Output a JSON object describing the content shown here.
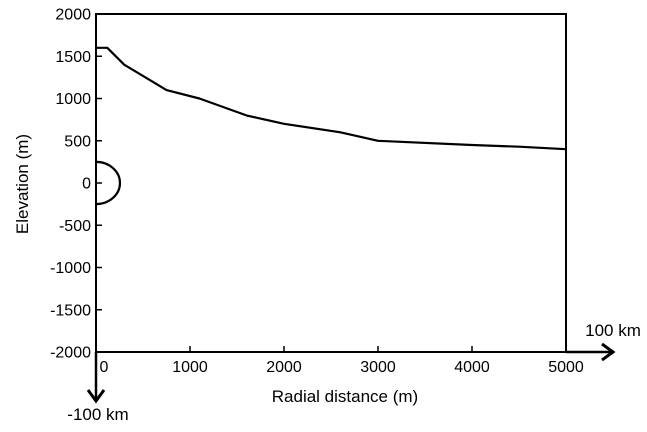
{
  "chart_data": {
    "type": "line",
    "title": "",
    "xlabel": "Radial distance (m)",
    "ylabel": "Elevation (m)",
    "xlim": [
      0,
      5000
    ],
    "ylim": [
      -2000,
      2000
    ],
    "x_ticks": [
      0,
      1000,
      2000,
      3000,
      4000,
      5000
    ],
    "x_tick_labels": [
      "0",
      "1000",
      "2000",
      "3000",
      "4000",
      "5000"
    ],
    "y_ticks": [
      2000,
      1500,
      1000,
      500,
      0,
      -500,
      -1000,
      -1500,
      -2000
    ],
    "y_tick_labels": [
      "2000",
      "1500",
      "1000",
      "500",
      "0",
      "-500",
      "-1000",
      "-1500",
      "-2000"
    ],
    "grid": false,
    "series": [
      {
        "x": [
          0,
          120,
          300,
          600,
          750,
          1100,
          1600,
          2000,
          2600,
          3000,
          4000,
          4500,
          5000
        ],
        "y": [
          1600,
          1600,
          1400,
          1200,
          1100,
          1000,
          800,
          700,
          600,
          500,
          450,
          430,
          400
        ]
      }
    ],
    "source_circle": {
      "center_x": 0,
      "center_y": 0,
      "radius": 250
    },
    "annotations": {
      "x_direction_label": "100 km",
      "y_direction_label": "-100 km"
    },
    "colors": {
      "line": "#000000",
      "axes": "#000000",
      "background": "#ffffff"
    }
  }
}
